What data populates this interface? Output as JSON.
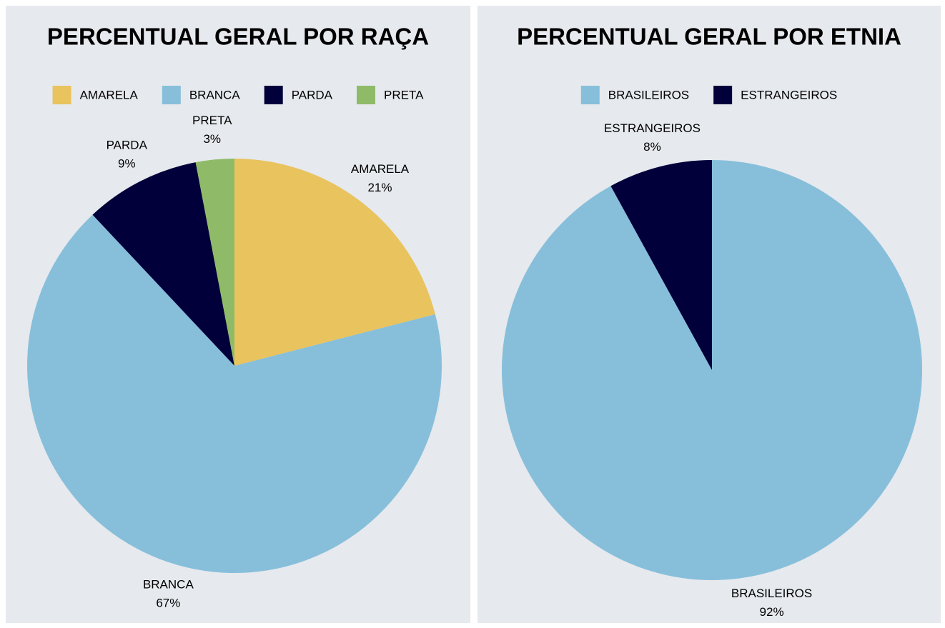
{
  "chart_data": [
    {
      "type": "pie",
      "title": "PERCENTUAL GERAL POR RAÇA",
      "categories": [
        "AMARELA",
        "BRANCA",
        "PARDA",
        "PRETA"
      ],
      "values": [
        21,
        67,
        9,
        3
      ],
      "value_labels": [
        "21%",
        "67%",
        "9%",
        "3%"
      ],
      "colors": [
        "#e8c35e",
        "#87bfdb",
        "#02003a",
        "#8fbb68"
      ],
      "legend": "top"
    },
    {
      "type": "pie",
      "title": "PERCENTUAL GERAL POR ETNIA",
      "categories": [
        "BRASILEIROS",
        "ESTRANGEIROS"
      ],
      "values": [
        92,
        8
      ],
      "value_labels": [
        "92%",
        "8%"
      ],
      "colors": [
        "#87bfdb",
        "#02003a"
      ],
      "legend": "top"
    }
  ]
}
